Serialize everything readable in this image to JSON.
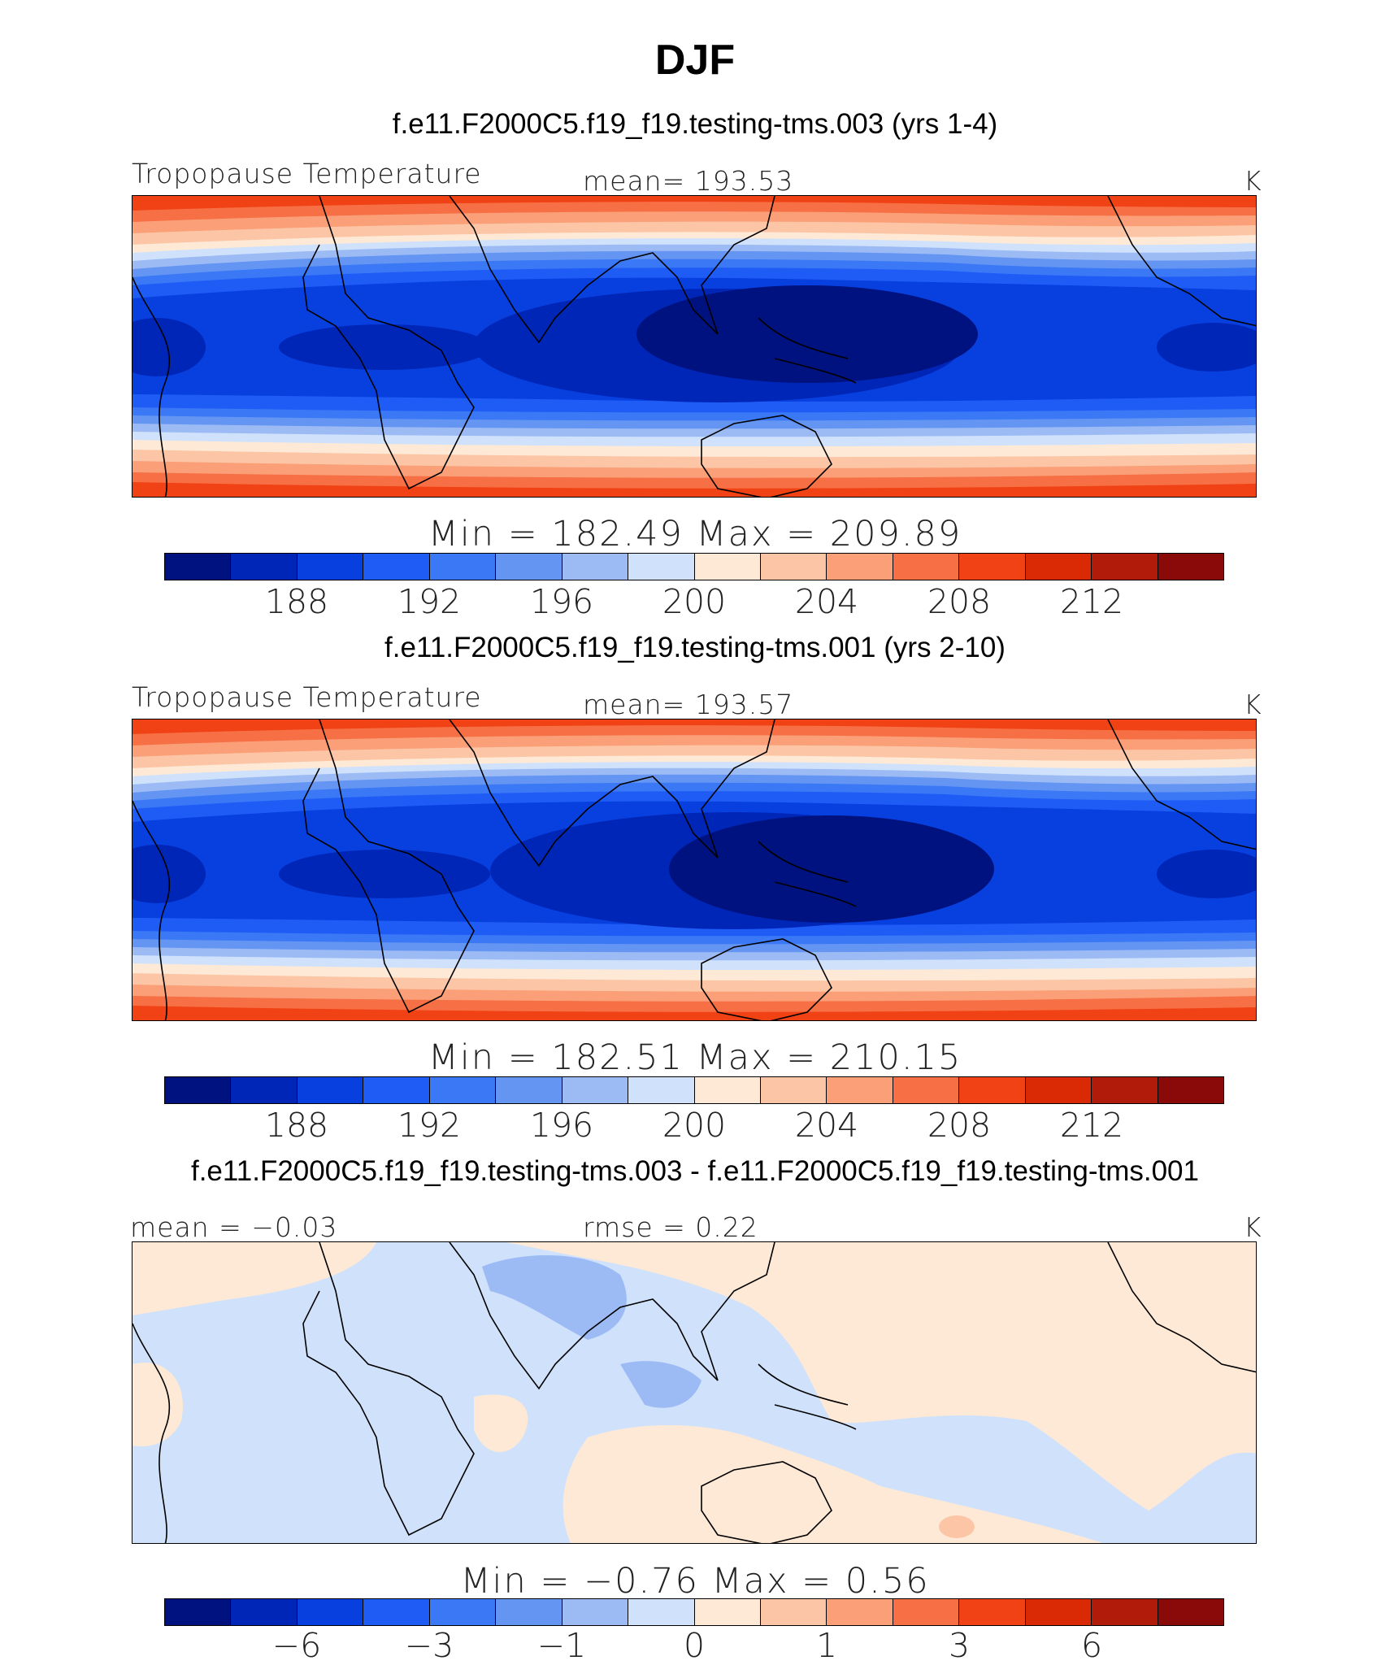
{
  "title": "DJF",
  "panels": [
    {
      "case": "f.e11.F2000C5.f19_f19.testing-tms.003 (yrs 1-4)",
      "left_label": "Tropopause  Temperature",
      "center_label": "mean=  193.53",
      "units": "K",
      "minmax": "Min  =  182.49  Max  =  209.89",
      "ticks": [
        "188",
        "192",
        "196",
        "200",
        "204",
        "208",
        "212"
      ]
    },
    {
      "case": "f.e11.F2000C5.f19_f19.testing-tms.001 (yrs 2-10)",
      "left_label": "Tropopause  Temperature",
      "center_label": "mean=  193.57",
      "units": "K",
      "minmax": "Min  =  182.51  Max  =  210.15",
      "ticks": [
        "188",
        "192",
        "196",
        "200",
        "204",
        "208",
        "212"
      ]
    },
    {
      "case": "f.e11.F2000C5.f19_f19.testing-tms.003 - f.e11.F2000C5.f19_f19.testing-tms.001",
      "left_label": "mean  =    −0.03",
      "center_label": "rmse  =      0.22",
      "units": "K",
      "minmax": "Min  =    −0.76  Max  =      0.56",
      "ticks": [
        "−6",
        "−3",
        "−1",
        "0",
        "1",
        "3",
        "6"
      ]
    }
  ],
  "colors": [
    "#00127f",
    "#0026b8",
    "#0840e0",
    "#1f5cf5",
    "#3a78f5",
    "#6495f2",
    "#9cbbf5",
    "#d0e2fb",
    "#fde9d6",
    "#fcc6a6",
    "#fa9f78",
    "#f76f45",
    "#f04214",
    "#d92a05",
    "#b01b0a",
    "#8a0a0a"
  ]
}
